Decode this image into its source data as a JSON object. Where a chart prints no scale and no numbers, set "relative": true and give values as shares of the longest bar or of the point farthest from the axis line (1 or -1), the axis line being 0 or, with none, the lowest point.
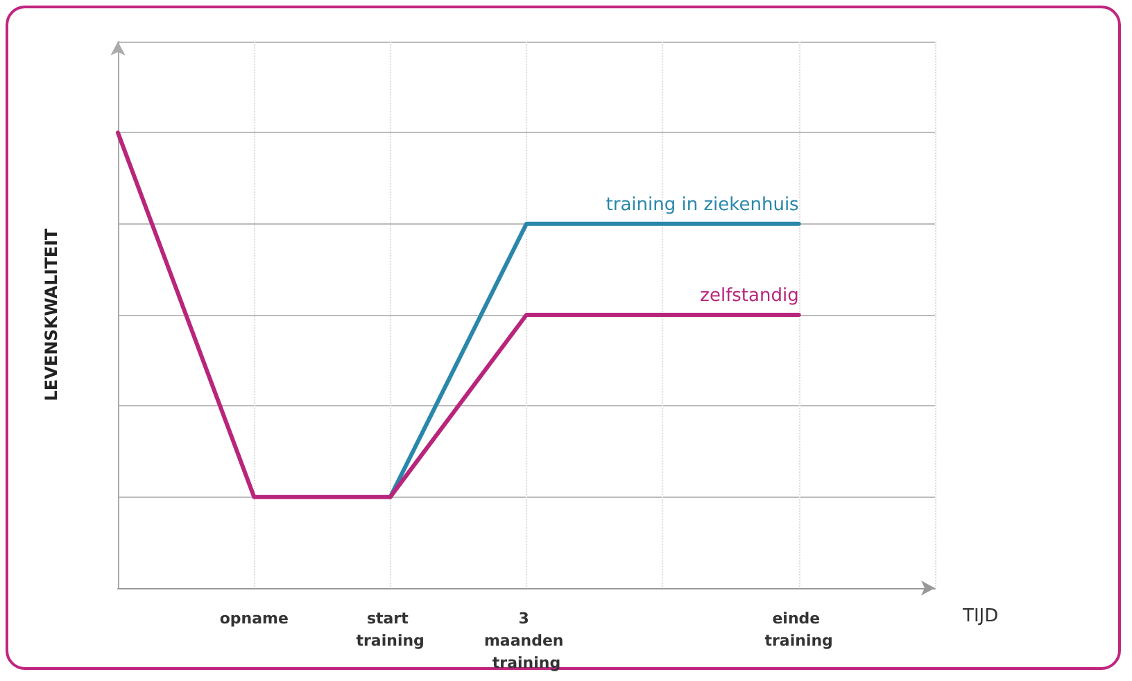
{
  "chart_data": {
    "type": "line",
    "relative": true,
    "xlabel": "TIJD",
    "ylabel": "LEVENSKWALITEIT",
    "categories": [
      null,
      "opname",
      "start training",
      "3 maanden training",
      null,
      "einde training",
      null
    ],
    "series": [
      {
        "name": "training in ziekenhuis",
        "color": "#2a87ab",
        "values": [
          null,
          null,
          0.2,
          0.8,
          0.8,
          0.8,
          null
        ]
      },
      {
        "name": "zelfstandig",
        "color": "#b8267c",
        "values": [
          1,
          0.2,
          0.2,
          0.6,
          0.6,
          0.6,
          null
        ]
      }
    ],
    "grid": true,
    "legend": false,
    "marker": "none",
    "line_style": "solid"
  }
}
